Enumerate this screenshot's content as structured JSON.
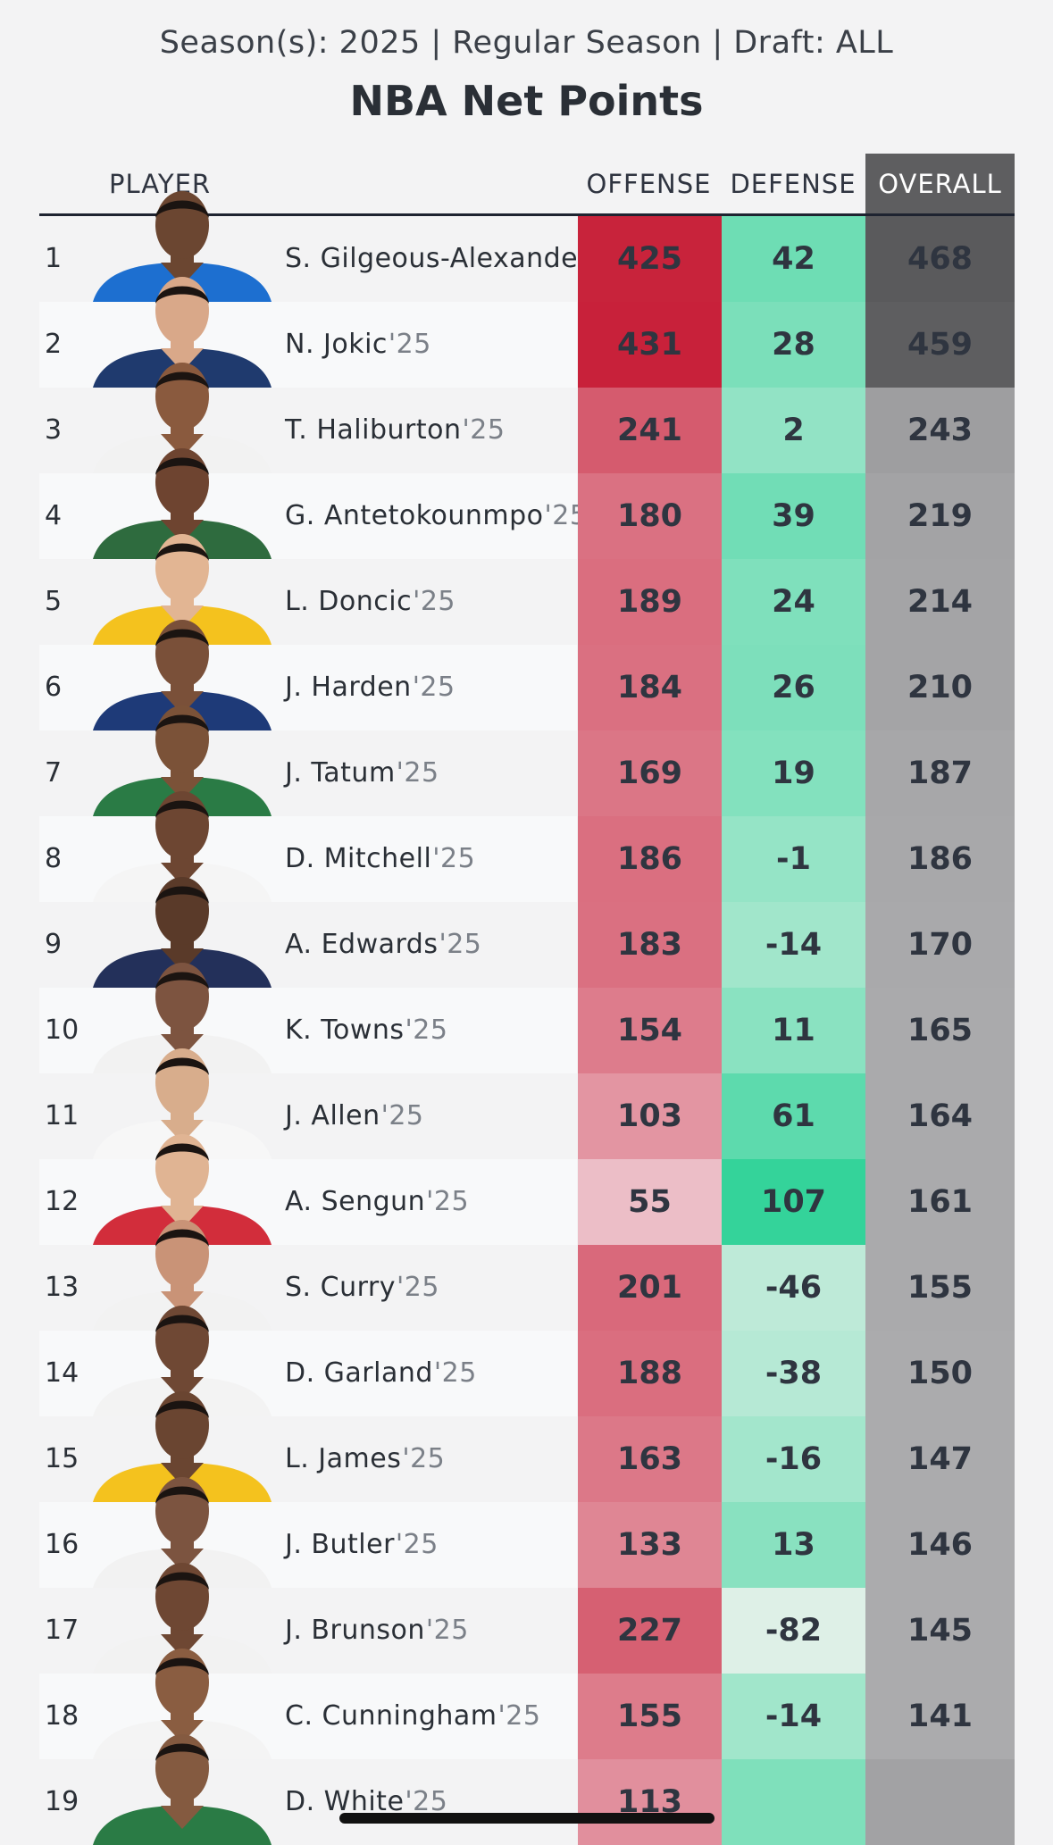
{
  "header": {
    "subtitle": "Season(s): 2025 | Regular Season | Draft: ALL",
    "title": "NBA Net Points"
  },
  "columns": {
    "player": "PLAYER",
    "offense": "OFFENSE",
    "defense": "DEFENSE",
    "overall": "OVERALL"
  },
  "colors": {
    "offense_hue": "#c8213a",
    "defense_hue": "#34d39a",
    "overall_dark": "#5a5a5c",
    "overall_light": "#a7a7a9"
  },
  "chart_data": {
    "type": "table",
    "title": "NBA Net Points",
    "subtitle": "Season(s): 2025 | Regular Season | Draft: ALL",
    "columns": [
      "PLAYER",
      "OFFENSE",
      "DEFENSE",
      "OVERALL"
    ],
    "rows": [
      {
        "rank": "1",
        "name": "S. Gilgeous-Alexander",
        "season": "",
        "offense": 425,
        "defense": 42,
        "overall": 468
      },
      {
        "rank": "2",
        "name": "N. Jokic",
        "season": "'25",
        "offense": 431,
        "defense": 28,
        "overall": 459
      },
      {
        "rank": "3",
        "name": "T. Haliburton",
        "season": "'25",
        "offense": 241,
        "defense": 2,
        "overall": 243
      },
      {
        "rank": "4",
        "name": "G. Antetokounmpo",
        "season": "'25",
        "offense": 180,
        "defense": 39,
        "overall": 219
      },
      {
        "rank": "5",
        "name": "L. Doncic",
        "season": "'25",
        "offense": 189,
        "defense": 24,
        "overall": 214
      },
      {
        "rank": "6",
        "name": "J. Harden",
        "season": "'25",
        "offense": 184,
        "defense": 26,
        "overall": 210
      },
      {
        "rank": "7",
        "name": "J. Tatum",
        "season": "'25",
        "offense": 169,
        "defense": 19,
        "overall": 187
      },
      {
        "rank": "8",
        "name": "D. Mitchell",
        "season": "'25",
        "offense": 186,
        "defense": -1,
        "overall": 186
      },
      {
        "rank": "9",
        "name": "A. Edwards",
        "season": "'25",
        "offense": 183,
        "defense": -14,
        "overall": 170
      },
      {
        "rank": "10",
        "name": "K. Towns",
        "season": "'25",
        "offense": 154,
        "defense": 11,
        "overall": 165
      },
      {
        "rank": "11",
        "name": "J. Allen",
        "season": "'25",
        "offense": 103,
        "defense": 61,
        "overall": 164
      },
      {
        "rank": "12",
        "name": "A. Sengun",
        "season": "'25",
        "offense": 55,
        "defense": 107,
        "overall": 161
      },
      {
        "rank": "13",
        "name": "S. Curry",
        "season": "'25",
        "offense": 201,
        "defense": -46,
        "overall": 155
      },
      {
        "rank": "14",
        "name": "D. Garland",
        "season": "'25",
        "offense": 188,
        "defense": -38,
        "overall": 150
      },
      {
        "rank": "15",
        "name": "L. James",
        "season": "'25",
        "offense": 163,
        "defense": -16,
        "overall": 147
      },
      {
        "rank": "16",
        "name": "J. Butler",
        "season": "'25",
        "offense": 133,
        "defense": 13,
        "overall": 146
      },
      {
        "rank": "17",
        "name": "J. Brunson",
        "season": "'25",
        "offense": 227,
        "defense": -82,
        "overall": 145
      },
      {
        "rank": "18",
        "name": "C. Cunningham",
        "season": "'25",
        "offense": 155,
        "defense": -14,
        "overall": 141
      },
      {
        "rank": "19",
        "name": "D. White",
        "season": "'25",
        "offense": 113,
        "defense": null,
        "overall": null
      }
    ]
  }
}
